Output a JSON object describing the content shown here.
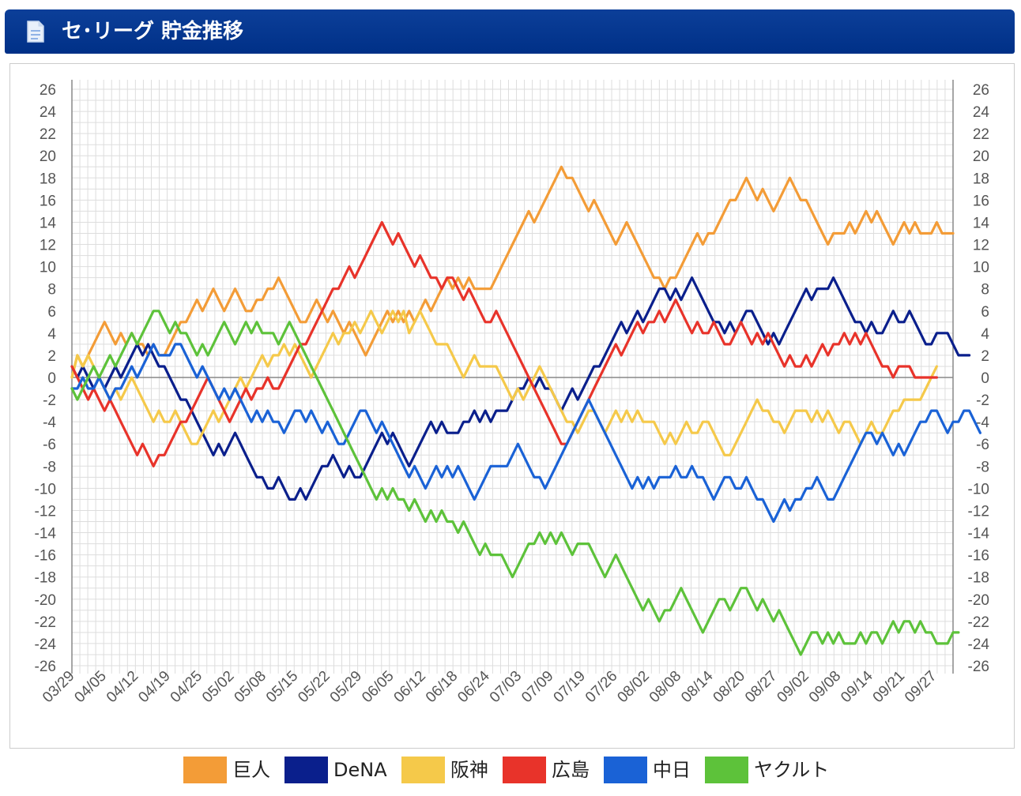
{
  "header": {
    "title": "セ･リーグ 貯金推移"
  },
  "chart_data": {
    "type": "line",
    "ylim": [
      -26,
      26
    ],
    "y_ticks": [
      26,
      24,
      22,
      20,
      18,
      16,
      14,
      12,
      10,
      8,
      6,
      4,
      2,
      0,
      -2,
      -4,
      -6,
      -8,
      -10,
      -12,
      -14,
      -16,
      -18,
      -20,
      -22,
      -24,
      -26
    ],
    "x_tick_labels": [
      "03/29",
      "04/05",
      "04/12",
      "04/19",
      "04/25",
      "05/02",
      "05/08",
      "05/15",
      "05/22",
      "05/29",
      "06/05",
      "06/12",
      "06/18",
      "06/24",
      "07/03",
      "07/09",
      "07/19",
      "07/26",
      "08/02",
      "08/08",
      "08/14",
      "08/20",
      "08/27",
      "09/02",
      "09/08",
      "09/14",
      "09/21",
      "09/27"
    ],
    "grid": true,
    "legend_position": "bottom",
    "series": [
      {
        "name": "巨人",
        "color": "#f39c37",
        "values": [
          0,
          2,
          1,
          2,
          3,
          4,
          5,
          4,
          3,
          4,
          3,
          4,
          3,
          3,
          2,
          3,
          2,
          2,
          3,
          4,
          5,
          5,
          6,
          7,
          6,
          7,
          8,
          7,
          6,
          7,
          8,
          7,
          6,
          6,
          7,
          7,
          8,
          8,
          9,
          8,
          7,
          6,
          5,
          5,
          6,
          7,
          6,
          5,
          6,
          5,
          4,
          5,
          4,
          3,
          2,
          3,
          4,
          5,
          6,
          5,
          6,
          5,
          6,
          5,
          6,
          7,
          6,
          7,
          8,
          9,
          8,
          9,
          8,
          9,
          8,
          8,
          8,
          8,
          9,
          10,
          11,
          12,
          13,
          14,
          15,
          14,
          15,
          16,
          17,
          18,
          19,
          18,
          18,
          17,
          16,
          15,
          16,
          15,
          14,
          13,
          12,
          13,
          14,
          13,
          12,
          11,
          10,
          9,
          9,
          8,
          9,
          9,
          10,
          11,
          12,
          13,
          12,
          13,
          13,
          14,
          15,
          16,
          16,
          17,
          18,
          17,
          16,
          17,
          16,
          15,
          16,
          17,
          18,
          17,
          16,
          16,
          15,
          14,
          13,
          12,
          13,
          13,
          13,
          14,
          13,
          14,
          15,
          14,
          15,
          14,
          13,
          12,
          13,
          14,
          13,
          14,
          13,
          13,
          13,
          14,
          13,
          13,
          13
        ]
      },
      {
        "name": "DeNA",
        "color": "#0a1f8c",
        "values": [
          1,
          0,
          1,
          0,
          -1,
          0,
          -1,
          0,
          1,
          0,
          1,
          2,
          3,
          2,
          3,
          2,
          1,
          1,
          0,
          -1,
          -2,
          -2,
          -3,
          -4,
          -5,
          -6,
          -7,
          -6,
          -7,
          -6,
          -5,
          -6,
          -7,
          -8,
          -9,
          -9,
          -10,
          -10,
          -9,
          -10,
          -11,
          -11,
          -10,
          -11,
          -10,
          -9,
          -8,
          -8,
          -7,
          -8,
          -9,
          -8,
          -9,
          -9,
          -8,
          -7,
          -6,
          -5,
          -6,
          -5,
          -6,
          -7,
          -8,
          -7,
          -6,
          -5,
          -4,
          -5,
          -4,
          -5,
          -5,
          -5,
          -4,
          -4,
          -3,
          -4,
          -3,
          -4,
          -3,
          -3,
          -3,
          -2,
          -1,
          -1,
          0,
          -1,
          0,
          -1,
          -1,
          -2,
          -3,
          -2,
          -1,
          -2,
          -1,
          0,
          1,
          1,
          2,
          3,
          4,
          5,
          4,
          5,
          6,
          5,
          6,
          7,
          8,
          8,
          7,
          8,
          7,
          8,
          9,
          8,
          7,
          6,
          5,
          5,
          4,
          5,
          4,
          5,
          6,
          6,
          5,
          4,
          3,
          4,
          3,
          4,
          5,
          6,
          7,
          8,
          7,
          8,
          8,
          8,
          9,
          8,
          7,
          6,
          5,
          5,
          4,
          5,
          4,
          4,
          5,
          6,
          5,
          5,
          6,
          5,
          4,
          3,
          3,
          4,
          4,
          4,
          3,
          2,
          2,
          2
        ]
      },
      {
        "name": "阪神",
        "color": "#f5c94a",
        "values": [
          0,
          2,
          1,
          2,
          1,
          0,
          -1,
          -2,
          -1,
          -2,
          -1,
          0,
          -1,
          -2,
          -3,
          -4,
          -3,
          -4,
          -4,
          -3,
          -4,
          -5,
          -6,
          -6,
          -5,
          -4,
          -3,
          -4,
          -3,
          -2,
          -1,
          0,
          -1,
          0,
          1,
          2,
          1,
          2,
          2,
          3,
          2,
          3,
          2,
          1,
          0,
          1,
          2,
          3,
          4,
          3,
          4,
          4,
          5,
          4,
          5,
          6,
          5,
          4,
          5,
          6,
          5,
          6,
          4,
          5,
          6,
          5,
          4,
          3,
          3,
          3,
          2,
          1,
          0,
          1,
          2,
          1,
          1,
          1,
          1,
          0,
          -1,
          -2,
          -1,
          -2,
          -1,
          0,
          1,
          0,
          -1,
          -2,
          -3,
          -4,
          -4,
          -5,
          -4,
          -3,
          -3,
          -4,
          -5,
          -4,
          -3,
          -4,
          -3,
          -4,
          -3,
          -4,
          -4,
          -4,
          -5,
          -6,
          -5,
          -6,
          -5,
          -4,
          -5,
          -5,
          -4,
          -4,
          -5,
          -6,
          -7,
          -7,
          -6,
          -5,
          -4,
          -3,
          -2,
          -3,
          -3,
          -4,
          -4,
          -5,
          -4,
          -3,
          -3,
          -3,
          -4,
          -3,
          -4,
          -3,
          -4,
          -5,
          -4,
          -4,
          -5,
          -6,
          -5,
          -4,
          -5,
          -5,
          -4,
          -3,
          -3,
          -2,
          -2,
          -2,
          -2,
          -1,
          0,
          1
        ]
      },
      {
        "name": "広島",
        "color": "#e8332a",
        "values": [
          1,
          0,
          -1,
          -2,
          -1,
          -2,
          -3,
          -2,
          -3,
          -4,
          -5,
          -6,
          -7,
          -6,
          -7,
          -8,
          -7,
          -7,
          -6,
          -5,
          -4,
          -4,
          -3,
          -2,
          -1,
          0,
          -1,
          -2,
          -3,
          -4,
          -3,
          -2,
          -1,
          -2,
          -1,
          -1,
          0,
          -1,
          -1,
          0,
          1,
          2,
          3,
          3,
          4,
          5,
          6,
          7,
          8,
          8,
          9,
          10,
          9,
          10,
          11,
          12,
          13,
          14,
          13,
          12,
          13,
          12,
          11,
          10,
          11,
          10,
          9,
          9,
          8,
          9,
          9,
          8,
          7,
          8,
          7,
          6,
          5,
          5,
          6,
          5,
          4,
          3,
          2,
          1,
          0,
          -1,
          -2,
          -3,
          -4,
          -5,
          -6,
          -6,
          -5,
          -4,
          -3,
          -2,
          -1,
          0,
          1,
          2,
          3,
          2,
          3,
          4,
          5,
          4,
          5,
          5,
          6,
          5,
          6,
          7,
          6,
          5,
          4,
          5,
          4,
          4,
          5,
          4,
          3,
          3,
          4,
          5,
          4,
          3,
          4,
          3,
          4,
          3,
          2,
          1,
          2,
          1,
          1,
          2,
          1,
          2,
          3,
          2,
          3,
          3,
          4,
          3,
          4,
          3,
          4,
          3,
          2,
          1,
          1,
          0,
          1,
          1,
          1,
          0,
          0,
          0,
          0,
          0
        ]
      },
      {
        "name": "中日",
        "color": "#1a62d6",
        "values": [
          -1,
          -1,
          0,
          -1,
          -1,
          0,
          -1,
          -2,
          -1,
          -1,
          0,
          1,
          0,
          1,
          2,
          3,
          2,
          2,
          2,
          3,
          3,
          2,
          1,
          0,
          1,
          0,
          -1,
          -2,
          -1,
          -2,
          -1,
          -2,
          -3,
          -4,
          -3,
          -4,
          -3,
          -4,
          -4,
          -5,
          -4,
          -3,
          -3,
          -4,
          -3,
          -4,
          -5,
          -4,
          -5,
          -6,
          -6,
          -5,
          -4,
          -3,
          -3,
          -4,
          -5,
          -4,
          -5,
          -6,
          -7,
          -8,
          -9,
          -8,
          -9,
          -10,
          -9,
          -8,
          -9,
          -8,
          -9,
          -8,
          -9,
          -10,
          -11,
          -10,
          -9,
          -8,
          -8,
          -8,
          -8,
          -7,
          -6,
          -7,
          -8,
          -9,
          -9,
          -10,
          -9,
          -8,
          -7,
          -6,
          -5,
          -4,
          -3,
          -2,
          -3,
          -4,
          -5,
          -6,
          -7,
          -8,
          -9,
          -10,
          -9,
          -10,
          -9,
          -10,
          -9,
          -9,
          -9,
          -8,
          -9,
          -9,
          -8,
          -9,
          -9,
          -10,
          -11,
          -10,
          -9,
          -9,
          -10,
          -10,
          -9,
          -10,
          -11,
          -11,
          -12,
          -13,
          -12,
          -11,
          -12,
          -11,
          -11,
          -10,
          -10,
          -9,
          -10,
          -11,
          -11,
          -10,
          -9,
          -8,
          -7,
          -6,
          -5,
          -5,
          -6,
          -5,
          -6,
          -7,
          -6,
          -7,
          -6,
          -5,
          -4,
          -4,
          -3,
          -3,
          -4,
          -5,
          -4,
          -4,
          -3,
          -3,
          -4,
          -5
        ]
      },
      {
        "name": "ヤクルト",
        "color": "#5dc23a",
        "values": [
          -1,
          -2,
          -1,
          0,
          1,
          0,
          1,
          2,
          1,
          2,
          3,
          4,
          3,
          4,
          5,
          6,
          6,
          5,
          4,
          5,
          4,
          4,
          3,
          2,
          3,
          2,
          3,
          4,
          5,
          4,
          3,
          4,
          5,
          4,
          5,
          4,
          4,
          4,
          3,
          4,
          5,
          4,
          3,
          2,
          1,
          0,
          -1,
          -2,
          -3,
          -4,
          -5,
          -6,
          -7,
          -8,
          -9,
          -10,
          -11,
          -10,
          -11,
          -10,
          -11,
          -11,
          -12,
          -11,
          -12,
          -13,
          -12,
          -13,
          -12,
          -13,
          -13,
          -14,
          -13,
          -14,
          -15,
          -16,
          -15,
          -16,
          -16,
          -16,
          -17,
          -18,
          -17,
          -16,
          -15,
          -15,
          -14,
          -15,
          -14,
          -15,
          -14,
          -15,
          -16,
          -15,
          -15,
          -15,
          -16,
          -17,
          -18,
          -17,
          -16,
          -17,
          -18,
          -19,
          -20,
          -21,
          -20,
          -21,
          -22,
          -21,
          -21,
          -20,
          -19,
          -20,
          -21,
          -22,
          -23,
          -22,
          -21,
          -20,
          -20,
          -21,
          -20,
          -19,
          -19,
          -20,
          -21,
          -20,
          -21,
          -22,
          -21,
          -22,
          -23,
          -24,
          -25,
          -24,
          -23,
          -23,
          -24,
          -23,
          -24,
          -23,
          -24,
          -24,
          -24,
          -23,
          -24,
          -23,
          -23,
          -24,
          -23,
          -22,
          -23,
          -22,
          -22,
          -23,
          -22,
          -23,
          -23,
          -24,
          -24,
          -24,
          -23,
          -23
        ]
      }
    ]
  },
  "legend": [
    {
      "label": "巨人",
      "color": "#f39c37"
    },
    {
      "label": "DeNA",
      "color": "#0a1f8c"
    },
    {
      "label": "阪神",
      "color": "#f5c94a"
    },
    {
      "label": "広島",
      "color": "#e8332a"
    },
    {
      "label": "中日",
      "color": "#1a62d6"
    },
    {
      "label": "ヤクルト",
      "color": "#5dc23a"
    }
  ]
}
